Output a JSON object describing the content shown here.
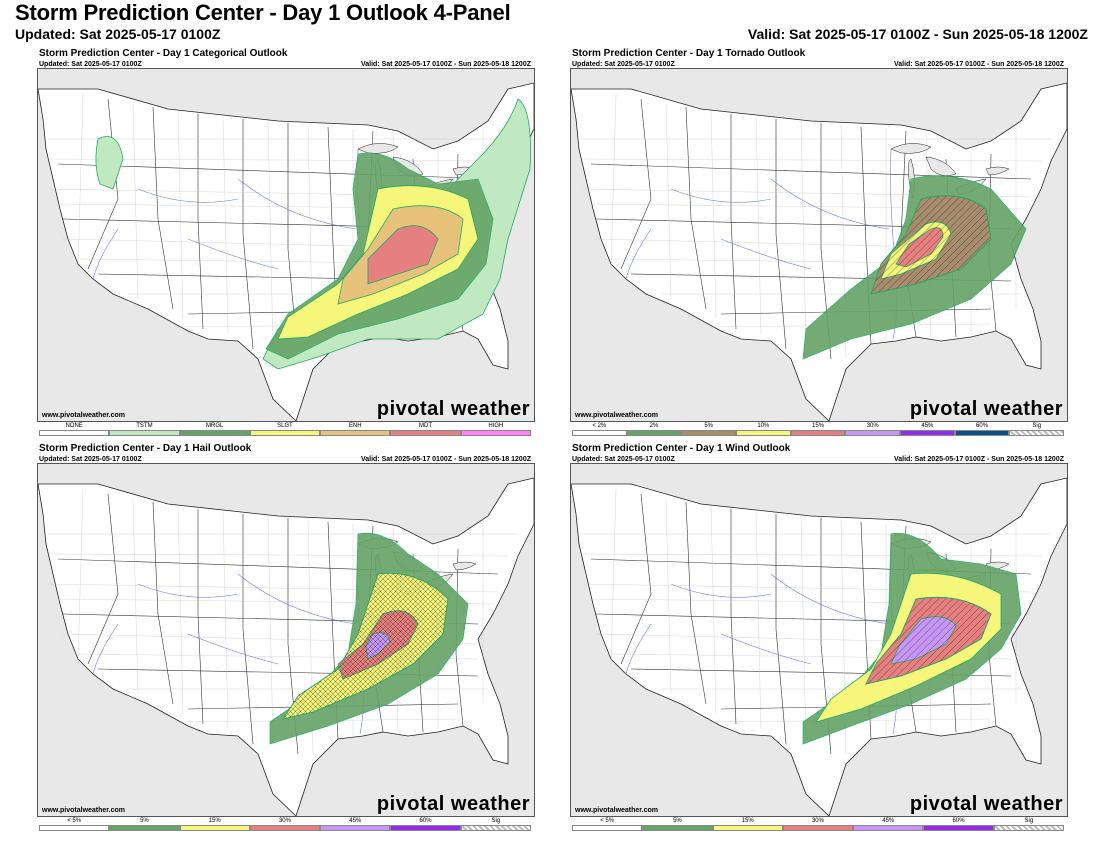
{
  "header": {
    "title": "Storm Prediction Center - Day 1 Outlook 4-Panel",
    "updated": "Updated: Sat 2025-05-17 0100Z",
    "valid": "Valid: Sat 2025-05-17 0100Z - Sun 2025-05-18 1200Z"
  },
  "panels": [
    {
      "title": "Storm Prediction Center - Day 1 Categorical Outlook",
      "updated": "Updated: Sat 2025-05-17 0100Z",
      "valid": "Valid: Sat 2025-05-17 0100Z - Sun 2025-05-18 1200Z",
      "site": "www.pivotalweather.com",
      "brand": "pivotal weather",
      "legend": [
        {
          "label": "NONE",
          "color": "#ffffff"
        },
        {
          "label": "TSTM",
          "color": "#c1e9c1"
        },
        {
          "label": "MRGL",
          "color": "#66a366"
        },
        {
          "label": "SLGT",
          "color": "#f6f67b"
        },
        {
          "label": "ENH",
          "color": "#e6c27a"
        },
        {
          "label": "MDT",
          "color": "#e67f7f"
        },
        {
          "label": "HIGH",
          "color": "#ff80ff"
        }
      ]
    },
    {
      "title": "Storm Prediction Center - Day 1 Tornado Outlook",
      "updated": "Updated: Sat 2025-05-17 0100Z",
      "valid": "Valid: Sat 2025-05-17 0100Z - Sun 2025-05-18 1200Z",
      "site": "www.pivotalweather.com",
      "brand": "pivotal weather",
      "legend": [
        {
          "label": "< 2%",
          "color": "#ffffff"
        },
        {
          "label": "2%",
          "color": "#66a366"
        },
        {
          "label": "5%",
          "color": "#a88c6e"
        },
        {
          "label": "10%",
          "color": "#f6f67b"
        },
        {
          "label": "15%",
          "color": "#e67f7f"
        },
        {
          "label": "30%",
          "color": "#c896f7"
        },
        {
          "label": "45%",
          "color": "#912cee"
        },
        {
          "label": "60%",
          "color": "#104e8b"
        },
        {
          "label": "Sig",
          "color": "hatch"
        }
      ]
    },
    {
      "title": "Storm Prediction Center - Day 1 Hail Outlook",
      "updated": "Updated: Sat 2025-05-17 0100Z",
      "valid": "Valid: Sat 2025-05-17 0100Z - Sun 2025-05-18 1200Z",
      "site": "www.pivotalweather.com",
      "brand": "pivotal weather",
      "legend": [
        {
          "label": "< 5%",
          "color": "#ffffff"
        },
        {
          "label": "5%",
          "color": "#66a366"
        },
        {
          "label": "15%",
          "color": "#f6f67b"
        },
        {
          "label": "30%",
          "color": "#e67f7f"
        },
        {
          "label": "45%",
          "color": "#c896f7"
        },
        {
          "label": "60%",
          "color": "#912cee"
        },
        {
          "label": "Sig",
          "color": "hatch"
        }
      ]
    },
    {
      "title": "Storm Prediction Center - Day 1 Wind Outlook",
      "updated": "Updated: Sat 2025-05-17 0100Z",
      "valid": "Valid: Sat 2025-05-17 0100Z - Sun 2025-05-18 1200Z",
      "site": "www.pivotalweather.com",
      "brand": "pivotal weather",
      "legend": [
        {
          "label": "< 5%",
          "color": "#ffffff"
        },
        {
          "label": "5%",
          "color": "#66a366"
        },
        {
          "label": "15%",
          "color": "#f6f67b"
        },
        {
          "label": "30%",
          "color": "#e67f7f"
        },
        {
          "label": "45%",
          "color": "#c896f7"
        },
        {
          "label": "60%",
          "color": "#912cee"
        },
        {
          "label": "Sig",
          "color": "hatch"
        }
      ]
    }
  ]
}
